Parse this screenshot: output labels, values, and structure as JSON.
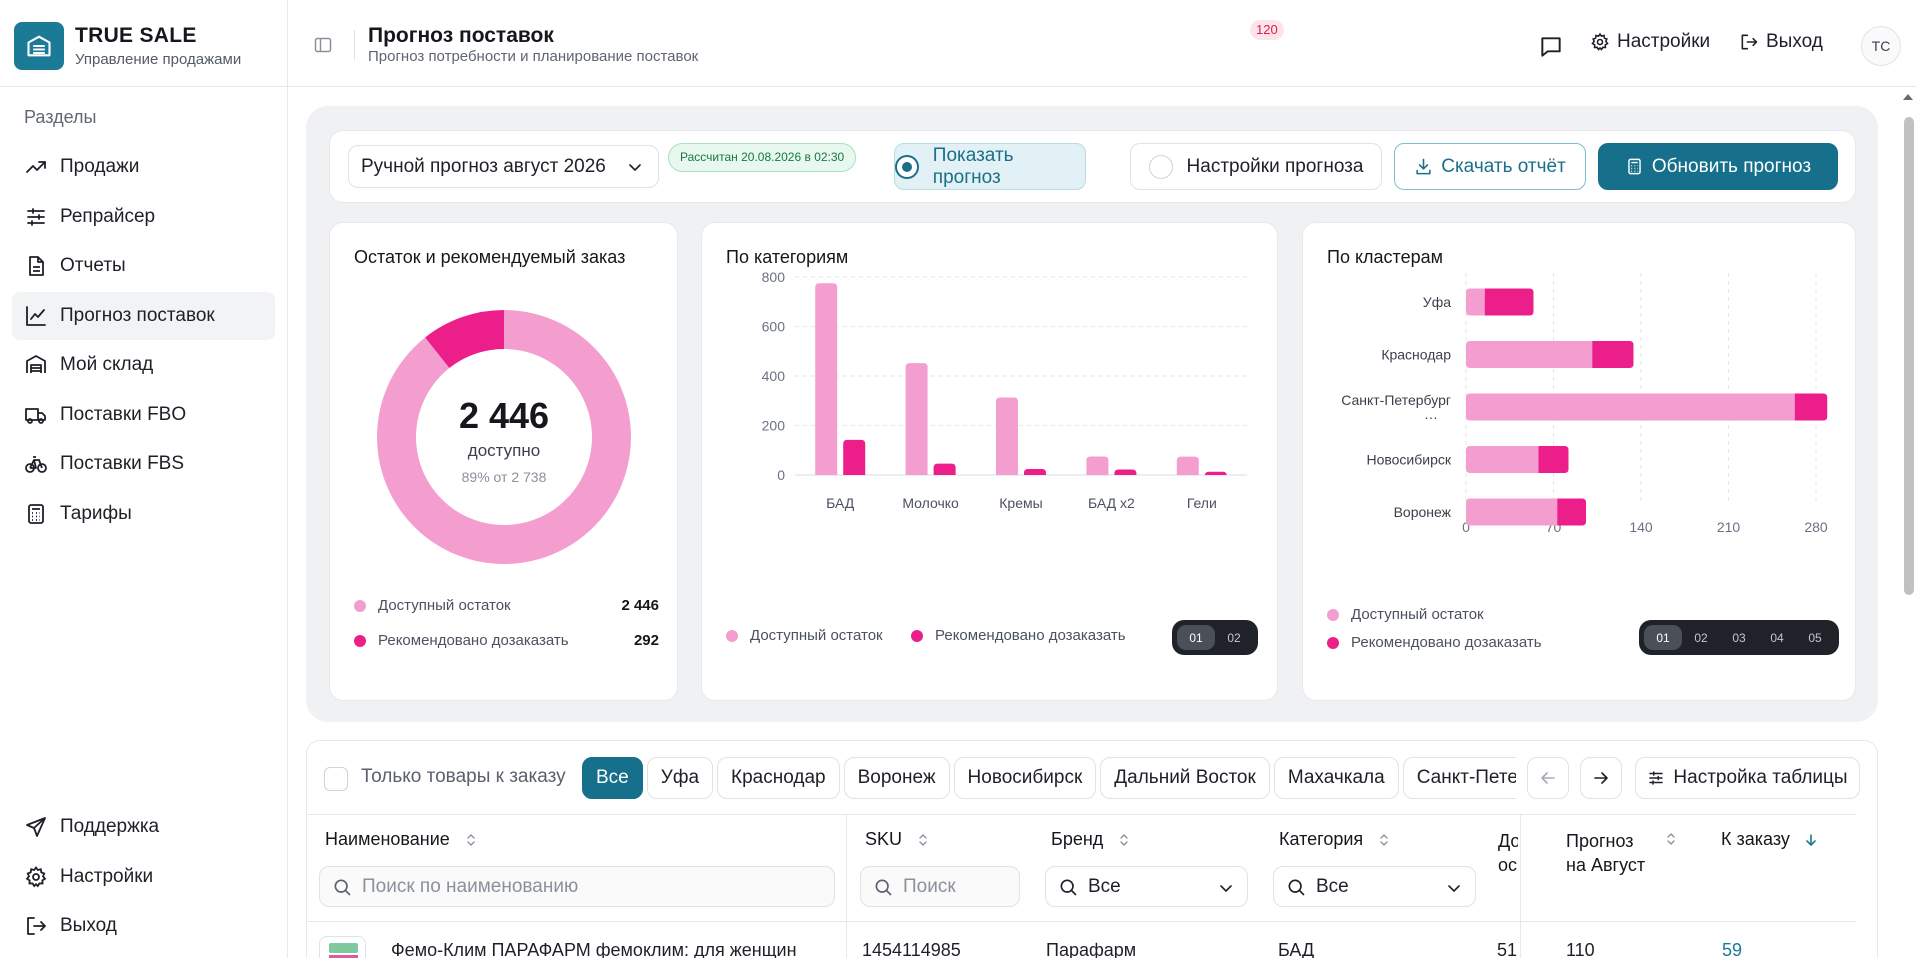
{
  "brand": {
    "title": "TRUE SALE",
    "subtitle": "Управление продажами"
  },
  "sidebar": {
    "section_label": "Разделы",
    "items": [
      {
        "label": "Продажи",
        "icon": "trending-up-icon"
      },
      {
        "label": "Репрайсер",
        "icon": "sliders-icon"
      },
      {
        "label": "Отчеты",
        "icon": "document-icon"
      },
      {
        "label": "Прогноз поставок",
        "icon": "line-chart-icon",
        "active": true
      },
      {
        "label": "Мой склад",
        "icon": "warehouse-icon"
      },
      {
        "label": "Поставки FBO",
        "icon": "truck-icon"
      },
      {
        "label": "Поставки FBS",
        "icon": "bike-icon"
      },
      {
        "label": "Тарифы",
        "icon": "calculator-icon"
      }
    ],
    "bottom": [
      {
        "label": "Поддержка",
        "icon": "send-icon"
      },
      {
        "label": "Настройки",
        "icon": "gear-icon"
      },
      {
        "label": "Выход",
        "icon": "logout-icon"
      }
    ]
  },
  "header": {
    "title": "Прогноз поставок",
    "subtitle": "Прогноз потребности и планирование поставок",
    "notifications_count": "120",
    "settings_label": "Настройки",
    "logout_label": "Выход",
    "avatar_initials": "TC"
  },
  "toolbar": {
    "forecast_select": "Ручной прогноз август 2026",
    "calc_badge": "Рассчитан 20.08.2026 в 02:30",
    "show_forecast": "Показать прогноз",
    "forecast_settings": "Настройки прогноза",
    "download_report": "Скачать отчёт",
    "update_forecast": "Обновить прогноз"
  },
  "cards": {
    "donut": {
      "title": "Остаток и рекомендуемый заказ",
      "center_value": "2 446",
      "center_label": "доступно",
      "center_sub": "89% от 2 738",
      "legend": [
        {
          "label": "Доступный остаток",
          "value": "2 446"
        },
        {
          "label": "Рекомендовано дозаказать",
          "value": "292"
        }
      ]
    },
    "categories": {
      "title": "По категориям",
      "legend": [
        "Доступный остаток",
        "Рекомендовано дозаказать"
      ],
      "pages": [
        "01",
        "02"
      ]
    },
    "clusters": {
      "title": "По кластерам",
      "legend": [
        "Доступный остаток",
        "Рекомендовано дозаказать"
      ],
      "pages": [
        "01",
        "02",
        "03",
        "04",
        "05"
      ]
    }
  },
  "colors": {
    "available": "#f49ecf",
    "reorder": "#ec1f8a",
    "accent": "#166f8b",
    "grid": "#e3e5ea"
  },
  "chart_data": [
    {
      "type": "pie",
      "title": "Остаток и рекомендуемый заказ",
      "labels": [
        "Доступный остаток",
        "Рекомендовано дозаказать"
      ],
      "values": [
        2446,
        292
      ]
    },
    {
      "type": "bar",
      "title": "По категориям",
      "categories": [
        "БАД",
        "Молочко",
        "Кремы",
        "БАД x2",
        "Гели"
      ],
      "series": [
        {
          "name": "Доступный остаток",
          "values": [
            775,
            452,
            313,
            75,
            74
          ]
        },
        {
          "name": "Рекомендовано дозаказать",
          "values": [
            142,
            46,
            24,
            22,
            13
          ]
        }
      ],
      "ylim": [
        0,
        800
      ],
      "yticks": [
        "0",
        "200",
        "400",
        "600",
        "800"
      ],
      "grid": true
    },
    {
      "type": "bar",
      "orientation": "horizontal",
      "stacked": true,
      "title": "По кластерам",
      "categories": [
        "Уфа",
        "Краснодар",
        "Санкт-Петербург …",
        "Новосибирск",
        "Воронеж"
      ],
      "series": [
        {
          "name": "Доступный остаток",
          "values": [
            15,
            101,
            263,
            58,
            73
          ]
        },
        {
          "name": "Рекомендовано дозаказать",
          "values": [
            39,
            33,
            26,
            24,
            23
          ]
        }
      ],
      "xlim": [
        0,
        280
      ],
      "xticks": [
        "0",
        "70",
        "140",
        "210",
        "280"
      ],
      "grid": true
    }
  ],
  "filters": {
    "only_to_order": "Только товары к заказу",
    "chips": [
      "Все",
      "Уфа",
      "Краснодар",
      "Воронеж",
      "Новосибирск",
      "Дальний Восток",
      "Махачкала",
      "Санкт-Петербург"
    ],
    "table_settings": "Настройка таблицы"
  },
  "table": {
    "columns": {
      "name": "Наименование",
      "sku": "SKU",
      "brand": "Бренд",
      "category": "Категория",
      "stock_l1": "До",
      "stock_l2": "ос",
      "forecast_l1": "Прогноз",
      "forecast_l2": "на Август",
      "to_order": "К заказу"
    },
    "search_name_placeholder": "Поиск по наименованию",
    "search_sku_placeholder": "Поиск",
    "brand_filter": "Все",
    "category_filter": "Все",
    "rows": [
      {
        "name": "Фемо-Клим ПАРАФАРМ фемоклим: для женщин",
        "sku": "1454114985",
        "brand": "Парафарм",
        "category": "БАД",
        "stock": "51",
        "forecast": "110",
        "to_order": "59"
      }
    ]
  }
}
